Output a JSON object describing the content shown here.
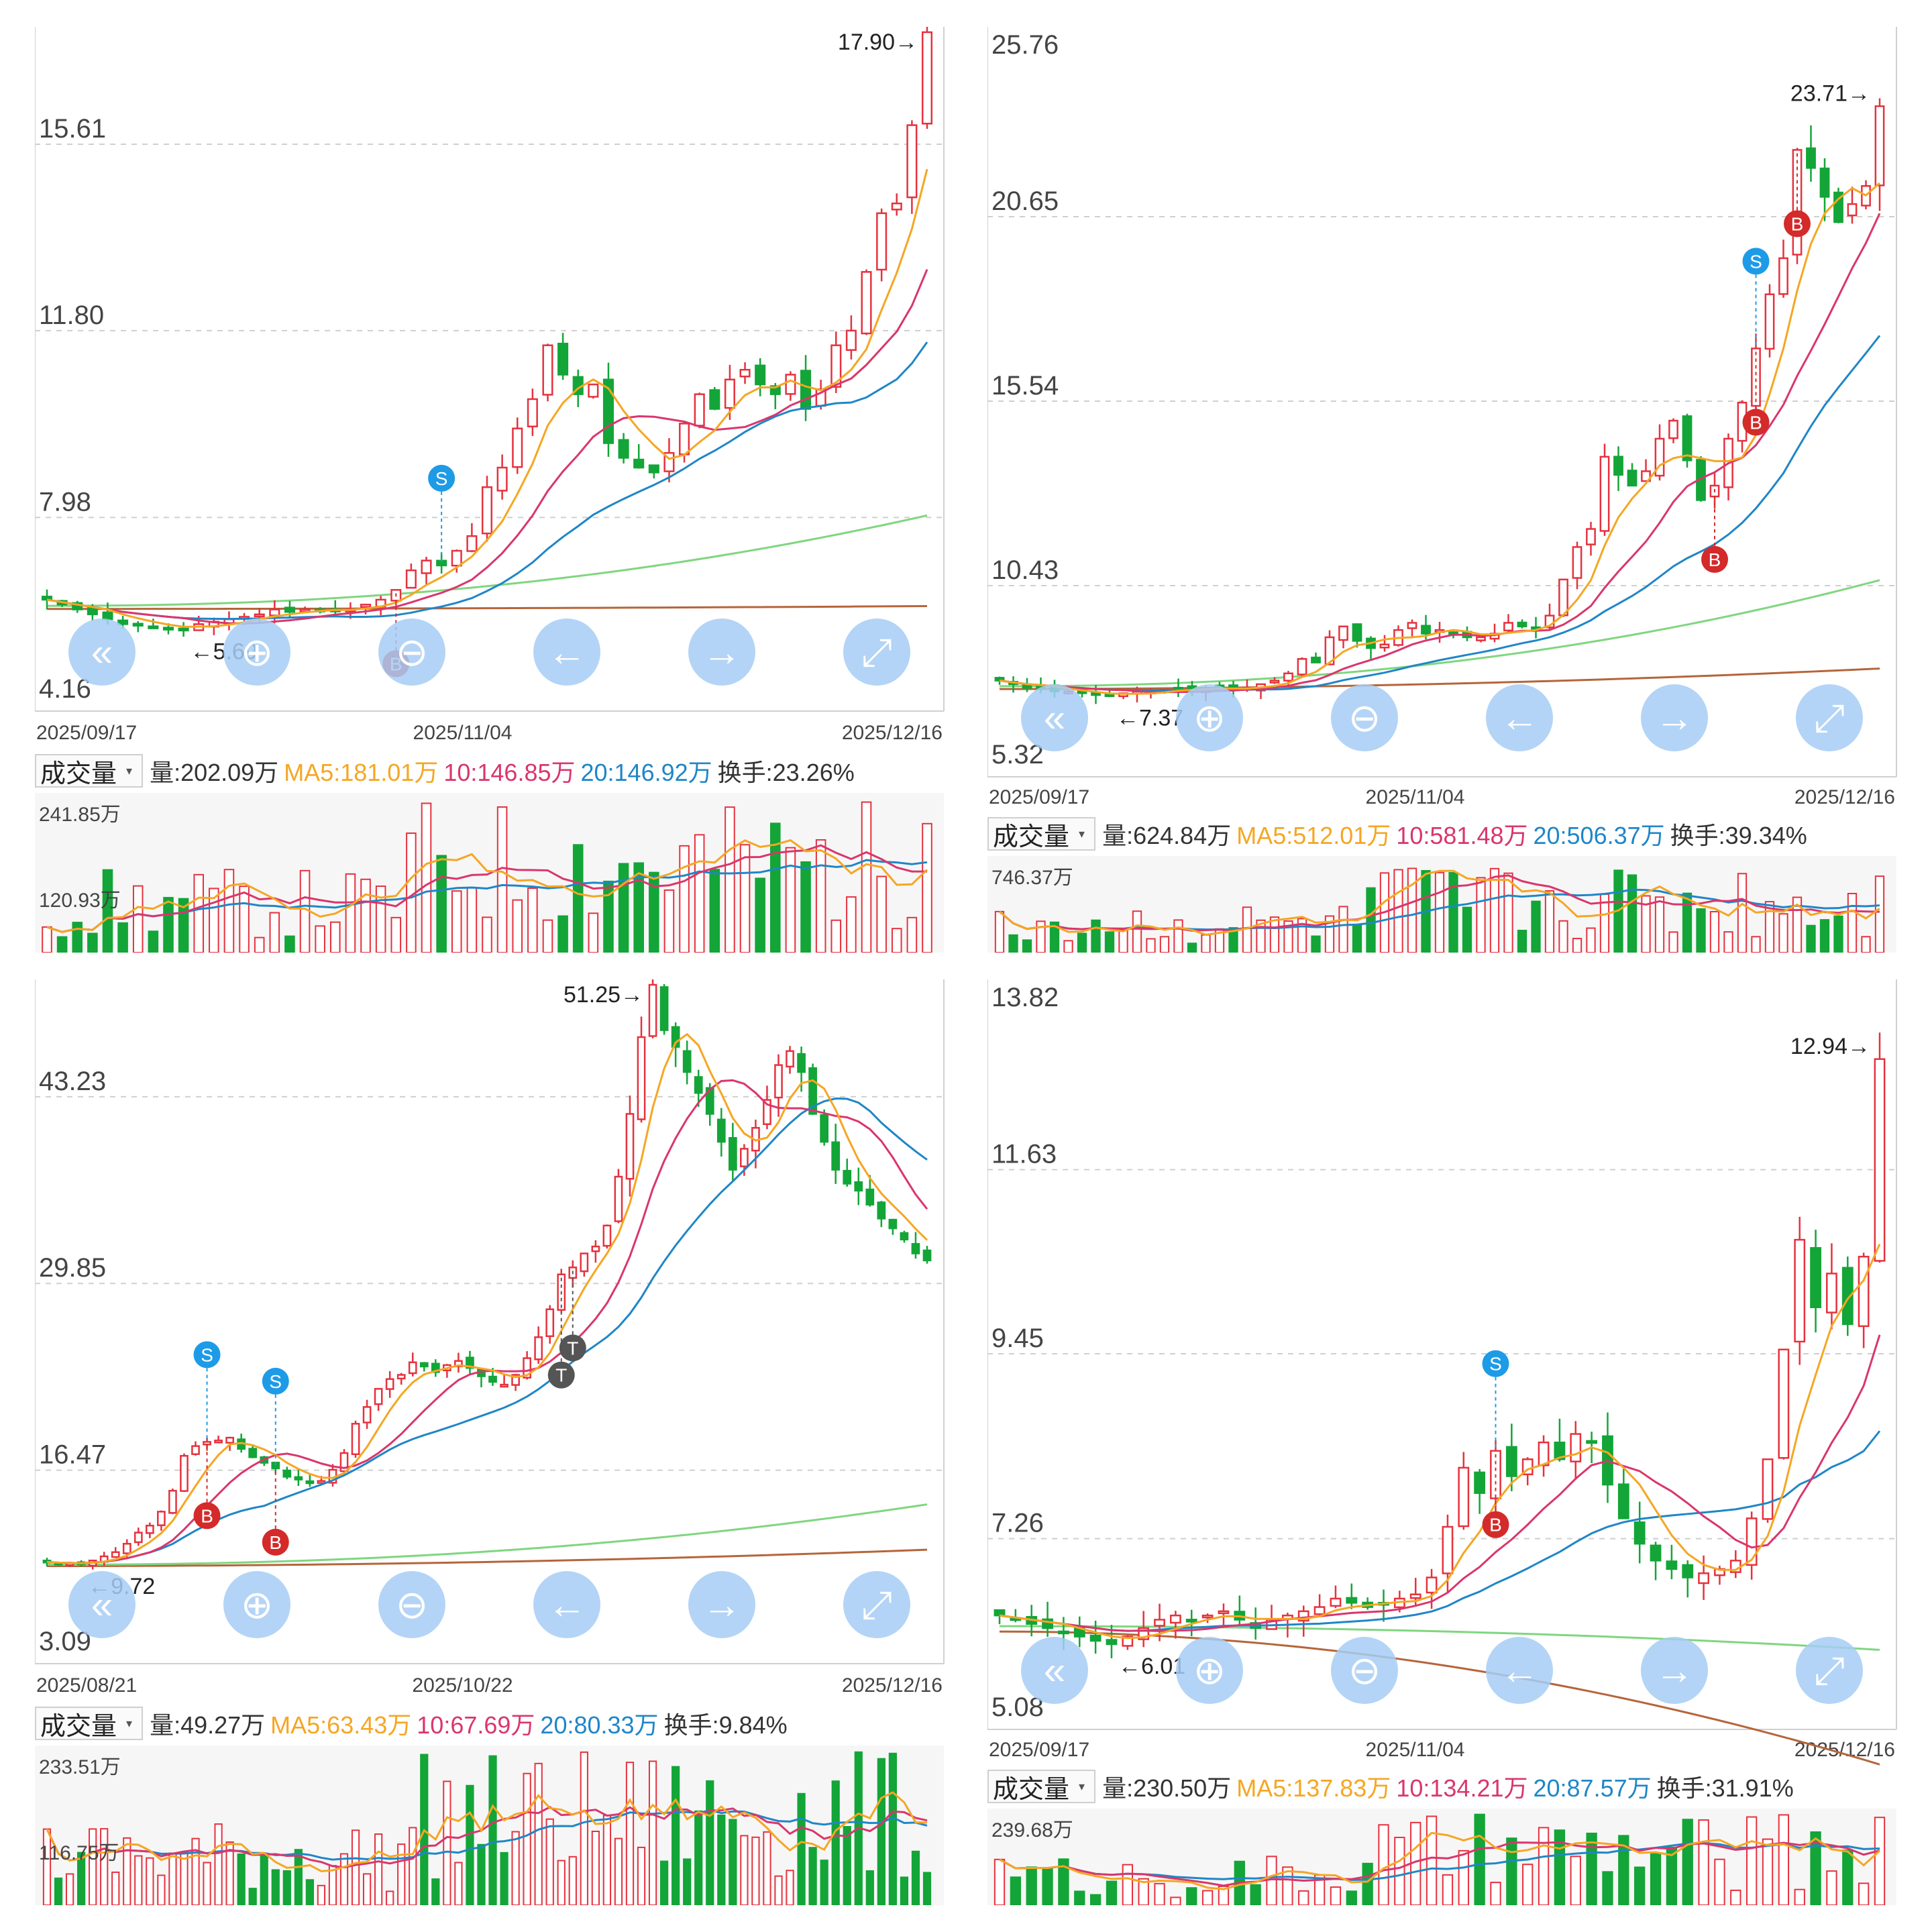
{
  "colors": {
    "up": "#e5323e",
    "down": "#13a538",
    "ma5": "#f5a623",
    "ma10": "#d9366d",
    "ma20": "#1f86c7",
    "ma60": "#7fd67f",
    "ma120": "#b5653a",
    "nav": "#a6cdf5",
    "buy": "#d42a2a",
    "sell": "#1e9be6",
    "t_marker": "#555555",
    "zone": "#dcdcdc"
  },
  "nav_icons": [
    "double-left-icon",
    "zoom-in-icon",
    "zoom-out-icon",
    "arrow-left-icon",
    "arrow-right-icon",
    "fullscreen-icon"
  ],
  "panels": [
    {
      "id": "tl",
      "y_ticks": [
        "15.61",
        "11.80",
        "7.98",
        "4.16"
      ],
      "x_labels": [
        "2025/09/17",
        "2025/11/04",
        "2025/12/16"
      ],
      "high_label": "17.90→",
      "low_label": "←5.69",
      "vol": {
        "selector": "成交量",
        "amount": "量:202.09万",
        "ma5": "MA5:181.01万",
        "ma10": "10:146.85万",
        "ma20": "20:146.92万",
        "turnover": "换手:23.26%",
        "y_ticks": [
          "241.85万",
          "120.93万"
        ]
      },
      "markers": [
        {
          "type": "S"
        },
        {
          "type": "B"
        }
      ]
    },
    {
      "id": "tr",
      "y_ticks": [
        "25.76",
        "20.65",
        "15.54",
        "10.43",
        "5.32"
      ],
      "x_labels": [
        "2025/09/17",
        "2025/11/04",
        "2025/12/16"
      ],
      "high_label": "23.71→",
      "low_label": "←7.37",
      "vol": {
        "selector": "成交量",
        "amount": "量:624.84万",
        "ma5": "MA5:512.01万",
        "ma10": "10:581.48万",
        "ma20": "20:506.37万",
        "turnover": "换手:39.34%",
        "y_ticks": [
          "746.37万",
          "373.18万"
        ]
      },
      "markers": [
        {
          "type": "S"
        },
        {
          "type": "B"
        },
        {
          "type": "B"
        },
        {
          "type": "B"
        }
      ]
    },
    {
      "id": "bl",
      "y_ticks": [
        "43.23",
        "29.85",
        "16.47",
        "3.09"
      ],
      "x_labels": [
        "2025/08/21",
        "2025/10/22",
        "2025/12/16"
      ],
      "high_label": "51.25→",
      "low_label": "←9.72",
      "vol": {
        "selector": "成交量",
        "amount": "量:49.27万",
        "ma5": "MA5:63.43万",
        "ma10": "10:67.69万",
        "ma20": "20:80.33万",
        "turnover": "换手:9.84%",
        "y_ticks": [
          "233.51万",
          "116.75万"
        ]
      },
      "markers": [
        {
          "type": "S"
        },
        {
          "type": "B"
        },
        {
          "type": "S"
        },
        {
          "type": "B"
        },
        {
          "type": "T"
        },
        {
          "type": "T"
        }
      ]
    },
    {
      "id": "br",
      "y_ticks": [
        "13.82",
        "11.63",
        "9.45",
        "7.26",
        "5.08"
      ],
      "x_labels": [
        "2025/09/17",
        "2025/11/04",
        "2025/12/16"
      ],
      "high_label": "12.94→",
      "low_label": "←6.01",
      "vol": {
        "selector": "成交量",
        "amount": "量:230.50万",
        "ma5": "MA5:137.83万",
        "ma10": "10:134.21万",
        "ma20": "20:87.57万",
        "turnover": "换手:31.91%",
        "y_ticks": [
          "239.68万",
          "119.84万"
        ]
      },
      "markers": [
        {
          "type": "S"
        },
        {
          "type": "B"
        }
      ]
    }
  ],
  "chart_data": [
    {
      "type": "candlestick",
      "x_range": [
        "2025/09/17",
        "2025/12/16"
      ],
      "ylim": [
        4.16,
        17.9
      ],
      "price_path": [
        6.3,
        6.2,
        6.1,
        6.0,
        5.9,
        5.8,
        5.8,
        5.75,
        5.7,
        5.69,
        5.8,
        5.85,
        5.9,
        5.95,
        6.0,
        6.1,
        6.05,
        6.1,
        6.1,
        6.1,
        6.1,
        6.2,
        6.3,
        6.5,
        6.9,
        7.1,
        7.0,
        7.3,
        7.6,
        8.6,
        9.0,
        9.8,
        10.4,
        11.5,
        10.9,
        10.5,
        10.7,
        9.5,
        9.2,
        9.0,
        8.9,
        9.3,
        9.9,
        10.5,
        10.2,
        10.8,
        11.0,
        10.7,
        10.5,
        10.9,
        10.2,
        10.6,
        11.5,
        11.8,
        13.0,
        14.2,
        14.4,
        16.0,
        17.9
      ],
      "high": 17.9,
      "low": 5.69,
      "volume_range": [
        0,
        241.85
      ],
      "last_volume": 202.09,
      "vol_ma5": 181.01,
      "vol_ma10": 146.85,
      "vol_ma20": 146.92,
      "turnover_pct": 23.26
    },
    {
      "type": "candlestick",
      "x_range": [
        "2025/09/17",
        "2025/12/16"
      ],
      "ylim": [
        5.32,
        25.76
      ],
      "price_path": [
        7.8,
        7.7,
        7.6,
        7.6,
        7.5,
        7.5,
        7.45,
        7.4,
        7.37,
        7.45,
        7.5,
        7.5,
        7.55,
        7.6,
        7.55,
        7.6,
        7.6,
        7.55,
        7.6,
        7.7,
        7.8,
        8.0,
        8.4,
        8.3,
        9.0,
        9.3,
        8.9,
        8.7,
        8.8,
        9.2,
        9.4,
        9.1,
        9.2,
        9.1,
        9.0,
        9.0,
        9.1,
        9.4,
        9.3,
        9.2,
        9.6,
        10.6,
        11.5,
        12.0,
        14.0,
        13.5,
        13.2,
        13.6,
        14.5,
        15.0,
        13.9,
        12.8,
        13.2,
        14.5,
        15.5,
        17.0,
        18.5,
        19.5,
        22.5,
        22.0,
        21.2,
        20.5,
        21.0,
        21.5,
        23.71
      ],
      "high": 23.71,
      "low": 7.37,
      "volume_range": [
        0,
        746.37
      ],
      "last_volume": 624.84,
      "vol_ma5": 512.01,
      "vol_ma10": 581.48,
      "vol_ma20": 506.37,
      "turnover_pct": 39.34
    },
    {
      "type": "candlestick",
      "x_range": [
        "2025/08/21",
        "2025/12/16"
      ],
      "ylim": [
        3.09,
        51.25
      ],
      "price_path": [
        9.9,
        9.8,
        9.8,
        9.72,
        10.0,
        10.3,
        10.6,
        11.2,
        12.0,
        12.5,
        13.5,
        15.0,
        17.5,
        18.2,
        18.5,
        18.6,
        18.8,
        18.0,
        17.4,
        17.0,
        16.6,
        16.0,
        15.8,
        15.6,
        15.7,
        16.5,
        17.7,
        19.8,
        21.0,
        22.3,
        23.0,
        23.3,
        24.2,
        23.9,
        23.5,
        24.0,
        24.3,
        23.8,
        23.2,
        22.8,
        22.6,
        23.3,
        24.5,
        26.0,
        28.0,
        30.5,
        31.0,
        32.0,
        32.5,
        34.0,
        37.5,
        42.0,
        47.5,
        51.25,
        48.0,
        46.8,
        45.0,
        43.5,
        42.0,
        40.0,
        38.0,
        39.5,
        41.0,
        43.0,
        45.5,
        46.5,
        45.0,
        42.0,
        40.0,
        38.0,
        37.0,
        36.5,
        35.5,
        34.5,
        33.8,
        33.0,
        32.0,
        31.5
      ],
      "high": 51.25,
      "low": 9.72,
      "volume_range": [
        0,
        233.51
      ],
      "last_volume": 49.27,
      "vol_ma5": 63.43,
      "vol_ma10": 67.69,
      "vol_ma20": 80.33,
      "turnover_pct": 9.84
    },
    {
      "type": "candlestick",
      "x_range": [
        "2025/09/17",
        "2025/12/16"
      ],
      "ylim": [
        5.08,
        13.82
      ],
      "price_path": [
        6.35,
        6.3,
        6.25,
        6.2,
        6.15,
        6.1,
        6.05,
        6.01,
        6.1,
        6.2,
        6.3,
        6.35,
        6.3,
        6.35,
        6.4,
        6.3,
        6.2,
        6.3,
        6.35,
        6.4,
        6.45,
        6.55,
        6.5,
        6.45,
        6.5,
        6.55,
        6.6,
        6.8,
        7.4,
        8.1,
        7.8,
        8.3,
        8.0,
        8.2,
        8.4,
        8.2,
        8.5,
        8.4,
        7.9,
        7.5,
        7.2,
        7.0,
        6.9,
        6.8,
        6.85,
        6.9,
        7.0,
        7.5,
        8.2,
        9.5,
        10.8,
        10.0,
        10.4,
        9.8,
        10.6,
        12.94
      ],
      "high": 12.94,
      "low": 6.01,
      "volume_range": [
        0,
        239.68
      ],
      "last_volume": 230.5,
      "vol_ma5": 137.83,
      "vol_ma10": 134.21,
      "vol_ma20": 87.57,
      "turnover_pct": 31.91
    }
  ]
}
